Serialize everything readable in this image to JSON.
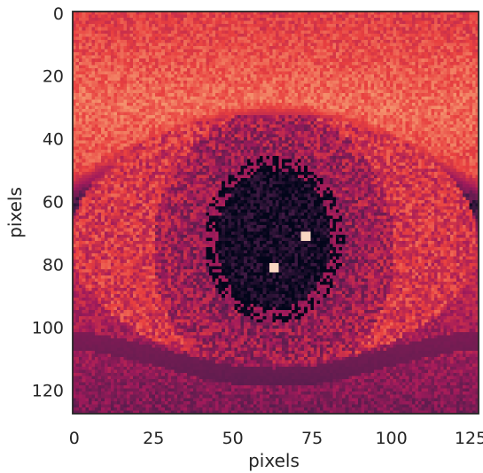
{
  "chart_data": {
    "type": "heatmap",
    "title": "",
    "xlabel": "pixels",
    "ylabel": "pixels",
    "xlim": [
      0,
      127
    ],
    "ylim": [
      127,
      0
    ],
    "xticks": [
      0,
      25,
      50,
      75,
      100,
      125
    ],
    "yticks": [
      0,
      20,
      40,
      60,
      80,
      100,
      120
    ],
    "image_size": [
      128,
      128
    ],
    "colormap": "rocket",
    "colormap_stops": [
      "#03051a",
      "#4c1d4b",
      "#a11a5b",
      "#e83f3f",
      "#f69c73",
      "#faebdd"
    ],
    "image": {
      "description_features": [
        {
          "name": "pupil",
          "center": [
            63,
            72
          ],
          "radii": [
            18,
            22
          ]
        },
        {
          "name": "iris",
          "center": [
            63,
            75
          ],
          "radii": [
            38,
            44
          ]
        },
        {
          "name": "eye-opening",
          "center": [
            63,
            72
          ],
          "radii": [
            64,
            40
          ]
        },
        {
          "name": "eyelash-band",
          "y_range": [
            35,
            70
          ]
        },
        {
          "name": "lower-lid-crease",
          "y_range": [
            104,
            118
          ]
        }
      ]
    }
  }
}
